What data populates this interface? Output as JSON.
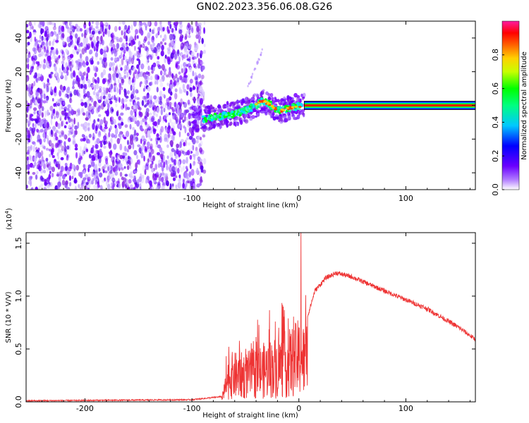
{
  "title": "GN02.2023.356.06.08.G26",
  "chart_data": [
    {
      "type": "heatmap",
      "xlabel": "Height of straight line (km)",
      "ylabel": "Frequency (Hz)",
      "xlim": [
        -255,
        165
      ],
      "ylim": [
        -50,
        50
      ],
      "x_ticks": [
        -200,
        -100,
        0,
        100
      ],
      "y_ticks": [
        -40,
        -20,
        0,
        20,
        40
      ],
      "colorbar": {
        "label": "Normalized spectral amplitude",
        "range": [
          0,
          1
        ],
        "ticks": [
          "0.0",
          "0.2",
          "0.4",
          "0.6",
          "0.8"
        ],
        "colors": [
          "#ffffff",
          "#7a00ff",
          "#0000ff",
          "#00ffff",
          "#00ff00",
          "#ffff00",
          "#ff8000",
          "#ff0000",
          "#ff00aa"
        ]
      },
      "noise_region_x": [
        -255,
        -88
      ],
      "signal_track": [
        {
          "x": -90,
          "f": -8
        },
        {
          "x": -80,
          "f": -7
        },
        {
          "x": -70,
          "f": -6
        },
        {
          "x": -60,
          "f": -5
        },
        {
          "x": -50,
          "f": -3
        },
        {
          "x": -40,
          "f": 0
        },
        {
          "x": -34,
          "f": 3
        },
        {
          "x": -28,
          "f": 1
        },
        {
          "x": -22,
          "f": -2
        },
        {
          "x": -16,
          "f": -3
        },
        {
          "x": -10,
          "f": -2
        },
        {
          "x": -4,
          "f": -1
        },
        {
          "x": 5,
          "f": 0
        },
        {
          "x": 165,
          "f": 0
        }
      ],
      "upper_branch": [
        {
          "x": -48,
          "f": 10
        },
        {
          "x": -42,
          "f": 20
        },
        {
          "x": -37,
          "f": 28
        },
        {
          "x": -34,
          "f": 34
        }
      ]
    },
    {
      "type": "line",
      "xlabel": "Height of straight line (km)",
      "ylabel": "SNR (10 * V/V)",
      "y_multiplier": "(x10",
      "y_multiplier_exp": "4",
      "xlim": [
        -255,
        165
      ],
      "ylim": [
        0,
        1.6
      ],
      "x_ticks": [
        -200,
        -100,
        0,
        100
      ],
      "y_ticks": [
        "0.0",
        "0.5",
        "1.0",
        "1.5"
      ],
      "y_tick_values": [
        0,
        0.5,
        1.0,
        1.5
      ],
      "series_color": "#ee3333",
      "envelope": [
        {
          "x": -255,
          "y": 0.01
        },
        {
          "x": -100,
          "y": 0.02
        },
        {
          "x": -72,
          "y": 0.05
        },
        {
          "x": -65,
          "y": 0.45
        },
        {
          "x": -50,
          "y": 0.45
        },
        {
          "x": -30,
          "y": 0.55
        },
        {
          "x": -10,
          "y": 0.65
        },
        {
          "x": 0,
          "y": 0.75
        },
        {
          "x": 5,
          "y": 0.7
        },
        {
          "x": 15,
          "y": 1.05
        },
        {
          "x": 25,
          "y": 1.17
        },
        {
          "x": 35,
          "y": 1.22
        },
        {
          "x": 50,
          "y": 1.18
        },
        {
          "x": 80,
          "y": 1.05
        },
        {
          "x": 120,
          "y": 0.88
        },
        {
          "x": 150,
          "y": 0.7
        },
        {
          "x": 165,
          "y": 0.59
        }
      ],
      "spike_x": 2,
      "spike_y": 1.6
    }
  ]
}
